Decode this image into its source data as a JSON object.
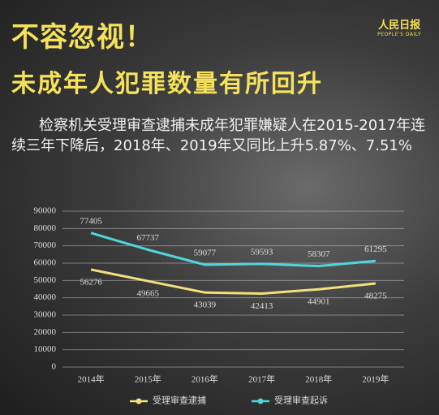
{
  "logo": {
    "name": "人民日报",
    "subname": "PEOPLE'S DAILY"
  },
  "chart_data": {
    "type": "line",
    "title": "不容忽视！",
    "subtitle": "未成年人犯罪数量有所回升",
    "description": "检察机关受理审查逮捕未成年犯罪嫌疑人在2015-2017年连续三年下降后，2018年、2019年又同比上升5.87%、7.51%",
    "categories": [
      "2014年",
      "2015年",
      "2016年",
      "2017年",
      "2018年",
      "2019年"
    ],
    "series": [
      {
        "name": "受理审查逮捕",
        "color": "#f3e07a",
        "values": [
          56276,
          49665,
          43039,
          42413,
          44901,
          48275
        ]
      },
      {
        "name": "受理审查起诉",
        "color": "#4fd6dc",
        "values": [
          77405,
          67737,
          59077,
          59593,
          58307,
          61295
        ]
      }
    ],
    "ylim": [
      0,
      90000
    ],
    "yticks": [
      0,
      10000,
      20000,
      30000,
      40000,
      50000,
      60000,
      70000,
      80000,
      90000
    ],
    "grid": true,
    "legend": "bottom"
  }
}
